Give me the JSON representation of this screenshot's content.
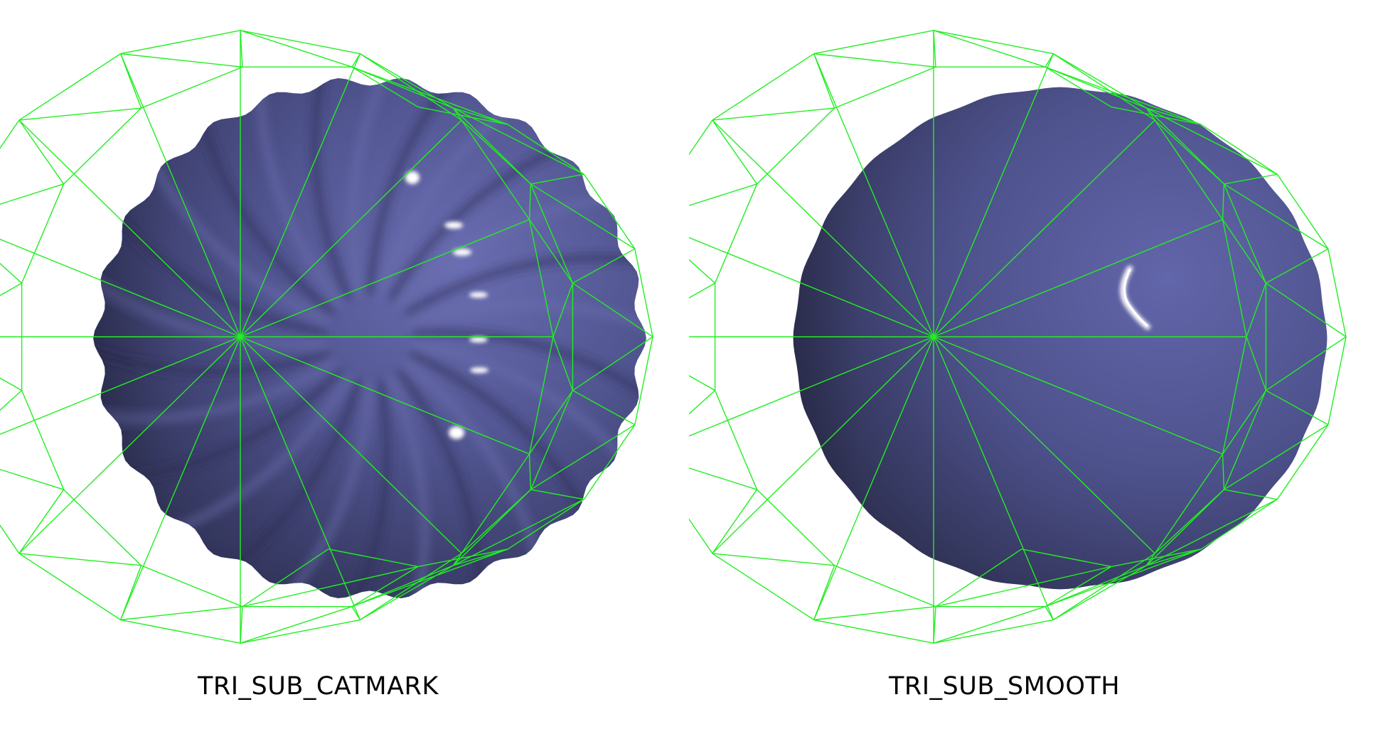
{
  "panels": [
    {
      "id": "left",
      "caption": "TRI_SUB_CATMARK",
      "surface": "ridged"
    },
    {
      "id": "right",
      "caption": "TRI_SUB_SMOOTH",
      "surface": "smooth"
    }
  ],
  "colors": {
    "background": "#ffffff",
    "surface_base": "#50548f",
    "surface_light": "#6a6eb0",
    "surface_dark": "#2d2f52",
    "wireframe": "#22ee22",
    "highlight": "#ffffff",
    "caption_text": "#000000"
  }
}
